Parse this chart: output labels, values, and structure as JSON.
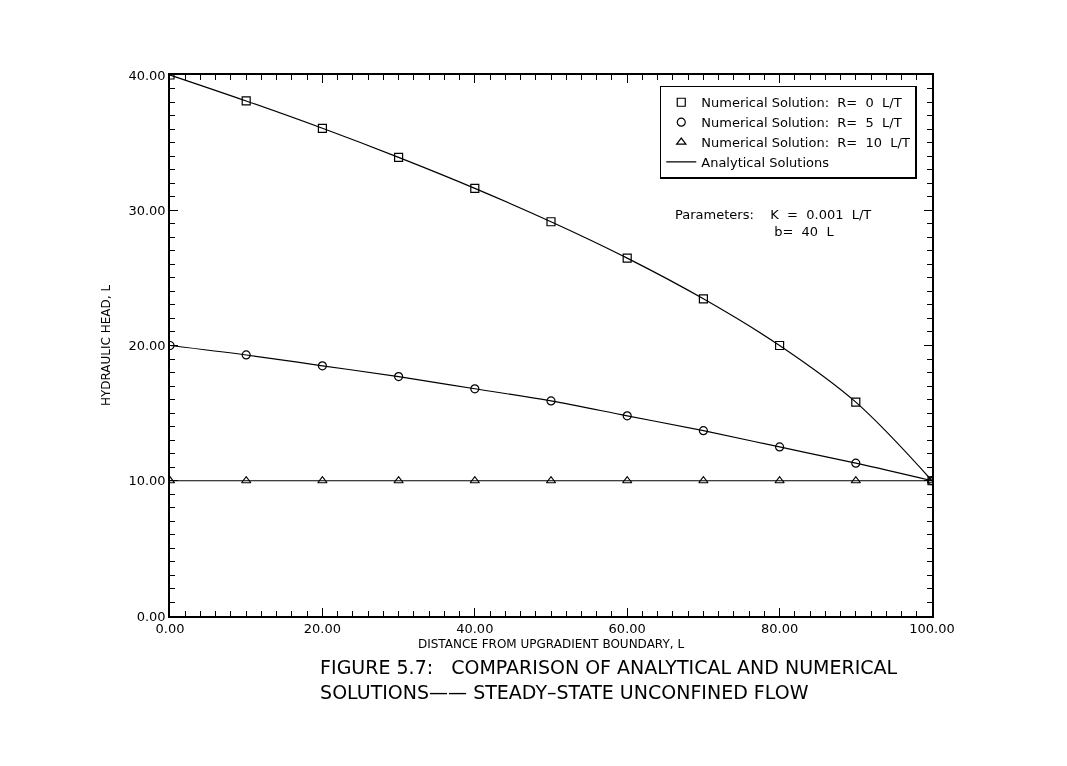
{
  "chart_data": {
    "type": "line",
    "title": "FIGURE 5.7:   COMPARISON OF ANALYTICAL AND NUMERICAL\nSOLUTIONS—— STEADY–STATE UNCONFINED FLOW",
    "xlabel": "DISTANCE FROM UPGRADIENT BOUNDARY, L",
    "ylabel": "HYDRAULIC HEAD, L",
    "x": [
      0,
      10,
      20,
      30,
      40,
      50,
      60,
      70,
      80,
      90,
      100
    ],
    "series": [
      {
        "name": "Numerical Solution:  R=  0  L/T",
        "type": "scatter",
        "marker": "square",
        "color": "#000000",
        "values": [
          40,
          38.08,
          36.06,
          33.91,
          31.62,
          29.15,
          26.46,
          23.45,
          20.0,
          15.81,
          10
        ]
      },
      {
        "name": "Numerical Solution:  R=  5  L/T",
        "type": "scatter",
        "marker": "circle",
        "color": "#000000",
        "values": [
          20,
          19.3,
          18.5,
          17.7,
          16.8,
          15.9,
          14.8,
          13.7,
          12.5,
          11.3,
          10
        ]
      },
      {
        "name": "Numerical Solution:  R=  10  L/T",
        "type": "scatter",
        "marker": "triangle",
        "color": "#000000",
        "values": [
          10,
          10,
          10,
          10,
          10,
          10,
          10,
          10,
          10,
          10,
          10
        ]
      },
      {
        "name": "Analytical Solutions",
        "line_style": "solid",
        "color": "#000000",
        "values": [
          40,
          38.08,
          36.06,
          33.91,
          31.62,
          29.15,
          26.46,
          23.45,
          20.0,
          15.81,
          10
        ]
      },
      {
        "line_style": "solid",
        "color": "#000000",
        "values": [
          20,
          19.3,
          18.5,
          17.7,
          16.8,
          15.9,
          14.8,
          13.7,
          12.5,
          11.3,
          10
        ]
      },
      {
        "line_style": "solid",
        "color": "#000000",
        "values": [
          10,
          10,
          10,
          10,
          10,
          10,
          10,
          10,
          10,
          10,
          10
        ]
      }
    ],
    "xlim": [
      0,
      100
    ],
    "ylim": [
      0,
      40
    ],
    "xticks": [
      {
        "value": 0,
        "label": "0.00"
      },
      {
        "value": 20,
        "label": "20.00"
      },
      {
        "value": 40,
        "label": "40.00"
      },
      {
        "value": 60,
        "label": "60.00"
      },
      {
        "value": 80,
        "label": "80.00"
      },
      {
        "value": 100,
        "label": "100.00"
      }
    ],
    "yticks": [
      {
        "value": 0,
        "label": "0.00"
      },
      {
        "value": 10,
        "label": "10.00"
      },
      {
        "value": 20,
        "label": "20.00"
      },
      {
        "value": 30,
        "label": "30.00"
      },
      {
        "value": 40,
        "label": "40.00"
      }
    ],
    "legend": "top right",
    "annotations": [
      "Parameters:    K  =  0.001  L/T\n                        b=  40  L"
    ]
  }
}
